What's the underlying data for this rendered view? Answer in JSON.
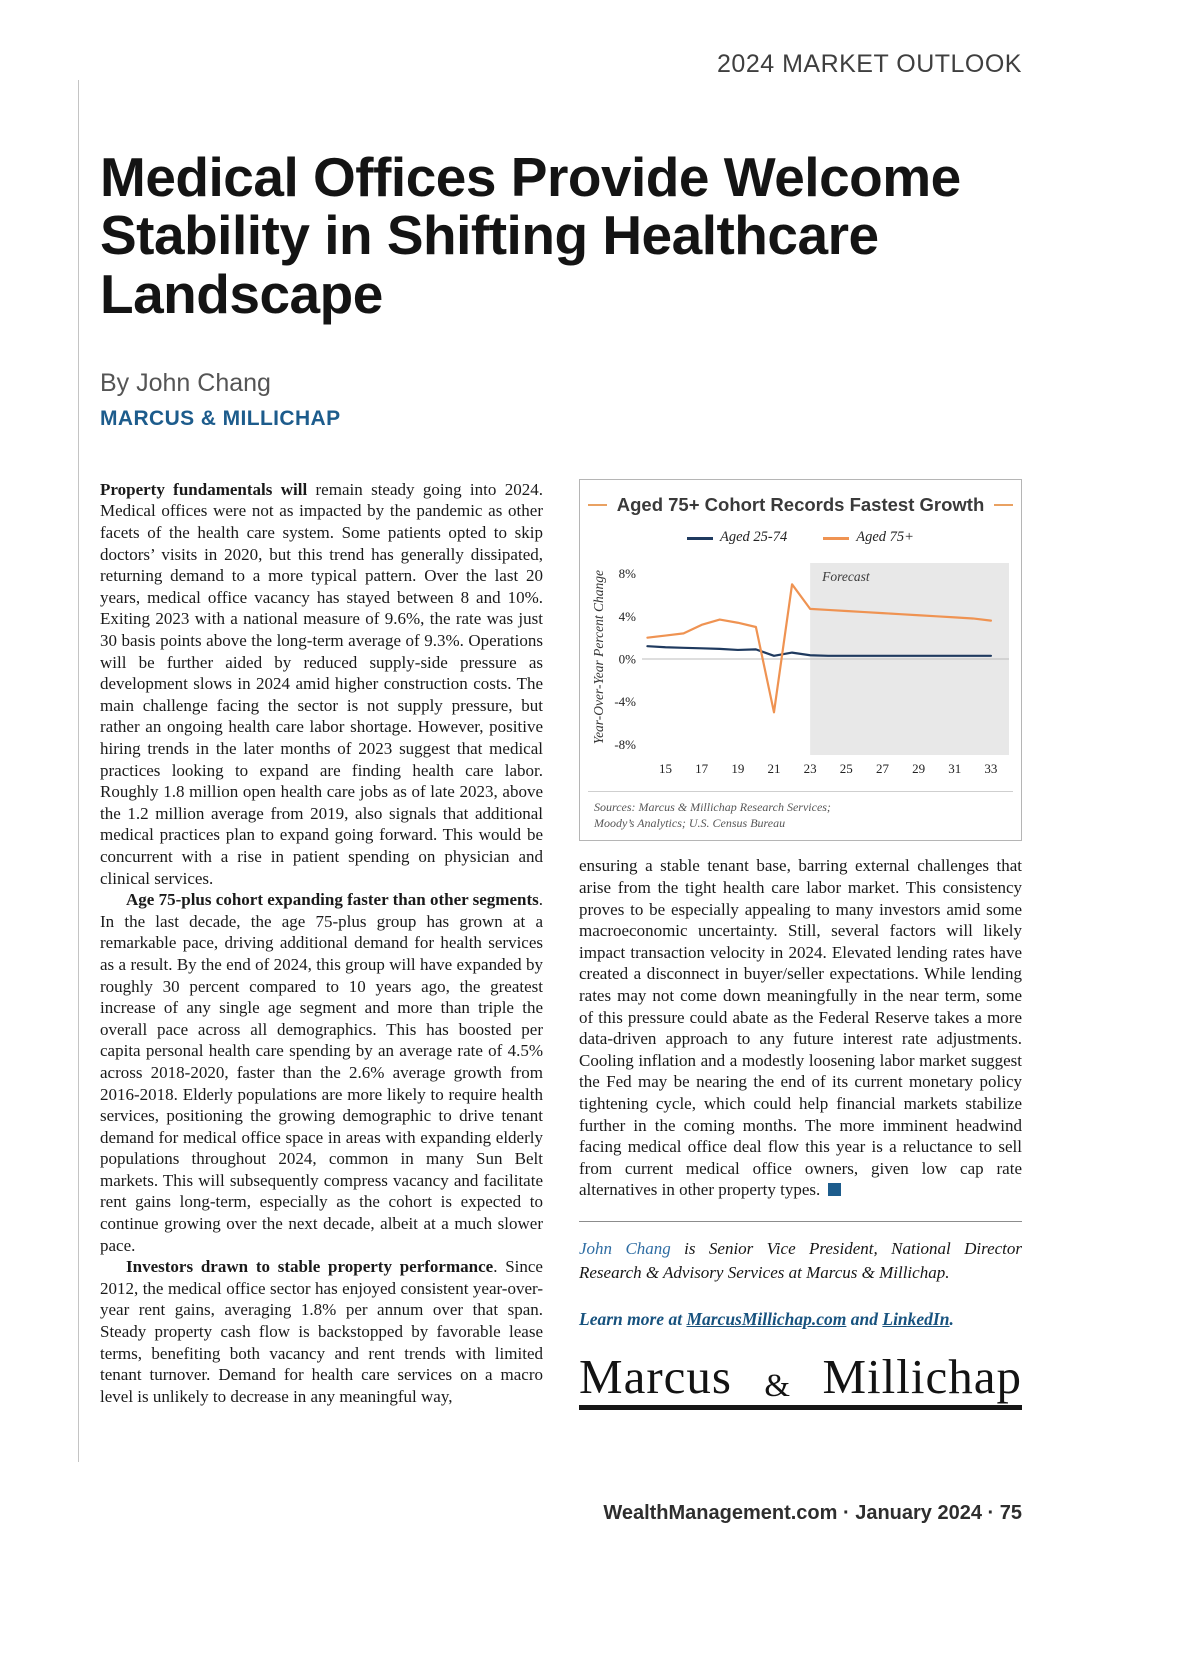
{
  "page": {
    "header": "2024 MARKET OUTLOOK",
    "title_lines": [
      "Medical Offices Provide Welcome",
      "Stability in Shifting Healthcare",
      "Landscape"
    ],
    "byline": "By John Chang",
    "company": "MARCUS & MILLICHAP",
    "footer_text": "WealthManagement.com · January 2024 · ",
    "footer_page": "75"
  },
  "colors": {
    "brand_navy": "#1d5c8c",
    "chart_orange": "#ef9352",
    "chart_navy": "#1f3a5f",
    "forecast_gray": "#e8e8e8"
  },
  "article": {
    "p1_lead": "Property fundamentals will",
    "p1_rest": " remain steady going into 2024. Medical offices were not as impacted by the pandemic as other facets of the health care system. Some patients opted to skip doctors’ visits in 2020, but this trend has generally dissipated, returning demand to a more typical pattern. Over the last 20 years, medical office vacancy has stayed between 8 and 10%. Exiting 2023 with a national measure of 9.6%, the rate was just 30 basis points above the long-term average of 9.3%. Operations will be further aided by reduced supply-side pressure as development slows in 2024 amid higher construction costs. The main challenge facing the sector is not supply pressure, but rather an ongoing health care labor shortage. However, positive hiring trends in the later months of 2023 suggest that medical practices looking to expand are finding health care labor. Roughly 1.8 million open health care jobs as of late 2023, above the 1.2 million average from 2019, also signals that additional medical practices plan to expand going forward. This would be concurrent with a rise in patient spending on physician and clinical services.",
    "p2_lead": "Age 75-plus cohort expanding faster than other segments",
    "p2_rest": ". In the last decade, the age 75-plus group has grown at a remarkable pace, driving additional demand for health services as a result. By the end of 2024, this group will have expanded by roughly 30 percent compared to 10 years ago, the greatest increase of any single age segment and more than triple the overall pace across all demographics. This has boosted per capita personal health care spending by an average rate of 4.5% across 2018-2020, faster than the 2.6% average growth from 2016-2018. Elderly populations are more likely to require health services, positioning the growing demographic to drive tenant demand for medical office space in areas with expanding elderly populations throughout 2024, common in many Sun Belt markets. This will subsequently compress vacancy and facilitate rent gains long-term, especially as the cohort is expected to continue growing over the next decade, albeit at a much slower pace.",
    "p3_lead": "Investors drawn to stable property performance",
    "p3_rest": ". Since 2012, the medical office sector has enjoyed consistent year-over-year rent gains, averaging 1.8% per annum over that span. Steady property cash flow is backstopped by favorable lease terms, benefiting both vacancy and rent trends with limited tenant turnover. Demand for health care services on a macro level is unlikely to decrease in any meaningful way,",
    "p4": "ensuring a stable tenant base, barring external challenges that arise from the tight health care labor market. This consistency proves to be especially appealing to many investors amid some macroeconomic uncertainty. Still, several factors will likely impact transaction velocity in 2024. Elevated lending rates have created a disconnect in buyer/seller expectations. While lending rates may not come down meaningfully in the near term, some of this pressure could abate as the Federal Reserve takes a more data-driven approach to any future interest rate adjustments. Cooling inflation and a modestly loosening labor market suggest the Fed may be nearing the end of its current monetary policy tightening cycle, which could help financial markets stabilize further in the coming months. The more imminent headwind facing medical office deal flow this year is a reluctance to sell from current medical office owners, given low cap rate alternatives in other property types.",
    "bio_name": "John Chang",
    "bio_rest": " is Senior Vice President, National Director Research & Advisory Services at Marcus & Millichap.",
    "learn_more_prefix": "Learn more at ",
    "learn_more_link1": "MarcusMillichap.com",
    "learn_more_mid": " and ",
    "learn_more_link2": "LinkedIn",
    "learn_more_suffix": ".",
    "logo_word1": "Marcus",
    "logo_amp": "&",
    "logo_word2": "Millichap"
  },
  "chart_data": {
    "type": "line",
    "title": "Aged 75+ Cohort Records Fastest Growth",
    "ylabel": "Year-Over-Year Percent Change",
    "forecast_label": "Forecast",
    "forecast_start": 23,
    "forecast_fill": "#e8e8e8",
    "x_years": [
      14,
      15,
      16,
      17,
      18,
      19,
      20,
      21,
      22,
      23,
      24,
      25,
      26,
      27,
      28,
      29,
      30,
      31,
      32,
      33
    ],
    "x_ticks": [
      15,
      17,
      19,
      21,
      23,
      25,
      27,
      29,
      31,
      33
    ],
    "y_ticks": [
      8,
      4,
      0,
      -4,
      -8
    ],
    "ylim": [
      -8,
      8
    ],
    "legend_position": "top",
    "grid": false,
    "series": [
      {
        "name": "Aged 25-74",
        "color": "#1f3a5f",
        "values": [
          1.2,
          1.1,
          1.05,
          1.0,
          0.95,
          0.85,
          0.9,
          0.3,
          0.6,
          0.35,
          0.3,
          0.3,
          0.3,
          0.3,
          0.3,
          0.3,
          0.3,
          0.3,
          0.3,
          0.3
        ]
      },
      {
        "name": "Aged 75+",
        "color": "#ef9352",
        "values": [
          2.0,
          2.2,
          2.4,
          3.2,
          3.7,
          3.4,
          3.0,
          -5.0,
          7.0,
          4.7,
          4.6,
          4.5,
          4.4,
          4.3,
          4.2,
          4.1,
          4.0,
          3.9,
          3.8,
          3.6
        ]
      }
    ],
    "sources_lines": [
      "Sources: Marcus & Millichap Research Services;",
      "Moody’s Analytics; U.S. Census Bureau"
    ]
  }
}
